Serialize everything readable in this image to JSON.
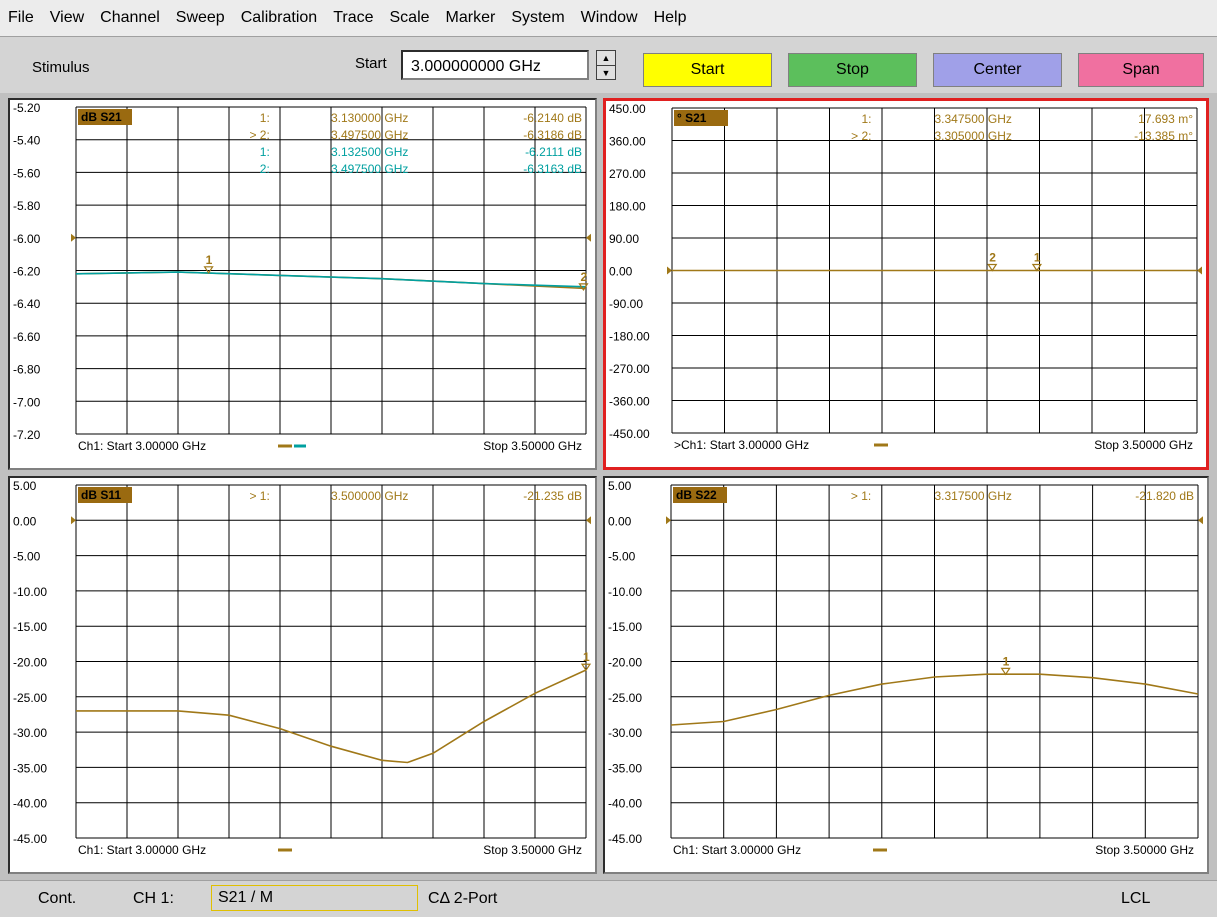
{
  "menu": [
    {
      "id": "file",
      "label": "File"
    },
    {
      "id": "view",
      "label": "View"
    },
    {
      "id": "channel",
      "label": "Channel"
    },
    {
      "id": "sweep",
      "label": "Sweep"
    },
    {
      "id": "calibration",
      "label": "Calibration"
    },
    {
      "id": "trace",
      "label": "Trace"
    },
    {
      "id": "scale",
      "label": "Scale"
    },
    {
      "id": "marker",
      "label": "Marker"
    },
    {
      "id": "system",
      "label": "System"
    },
    {
      "id": "window",
      "label": "Window"
    },
    {
      "id": "help",
      "label": "Help"
    }
  ],
  "toolbar": {
    "stimulus_label": "Stimulus",
    "start_label": "Start",
    "start_value": "3.000000000 GHz",
    "buttons": [
      {
        "id": "start",
        "label": "Start",
        "color": "#ffff00"
      },
      {
        "id": "stop",
        "label": "Stop",
        "color": "#5cbf5c"
      },
      {
        "id": "center",
        "label": "Center",
        "color": "#a0a0e8"
      },
      {
        "id": "span",
        "label": "Span",
        "color": "#f070a0"
      }
    ]
  },
  "panels": [
    {
      "id": "top-left",
      "title": "dB S21",
      "active": false,
      "y_labels": [
        "-5.20",
        "-5.40",
        "-5.60",
        "-5.80",
        "-6.00",
        "-6.20",
        "-6.40",
        "-6.60",
        "-6.80",
        "-7.00",
        "-7.20"
      ],
      "ref_level_row": 4,
      "footer_start": "Ch1: Start  3.00000 GHz",
      "footer_stop": "Stop  3.50000 GHz",
      "markers": [
        {
          "num": "1:",
          "freq": "3.130000 GHz",
          "val": "-6.2140 dB",
          "color": "#a07818"
        },
        {
          "num": "> 2:",
          "freq": "3.497500 GHz",
          "val": "-6.3186 dB",
          "color": "#a07818"
        },
        {
          "num": "1:",
          "freq": "3.132500 GHz",
          "val": "-6.2111 dB",
          "color": "#00a0a0"
        },
        {
          "num": "2:",
          "freq": "3.497500 GHz",
          "val": "-6.3163 dB",
          "color": "#00a0a0"
        }
      ]
    },
    {
      "id": "top-right",
      "title": "° S21",
      "active": true,
      "y_labels": [
        "450.00",
        "360.00",
        "270.00",
        "180.00",
        "90.00",
        "0.00",
        "-90.00",
        "-180.00",
        "-270.00",
        "-360.00",
        "-450.00"
      ],
      "ref_level_row": 5,
      "footer_start": ">Ch1: Start  3.00000 GHz",
      "footer_stop": "Stop  3.50000 GHz",
      "markers": [
        {
          "num": "1:",
          "freq": "3.347500 GHz",
          "val": "17.693 m°",
          "color": "#a07818"
        },
        {
          "num": "> 2:",
          "freq": "3.305000 GHz",
          "val": "-13.385 m°",
          "color": "#a07818"
        }
      ]
    },
    {
      "id": "bottom-left",
      "title": "dB S11",
      "active": false,
      "y_labels": [
        "5.00",
        "0.00",
        "-5.00",
        "-10.00",
        "-15.00",
        "-20.00",
        "-25.00",
        "-30.00",
        "-35.00",
        "-40.00",
        "-45.00"
      ],
      "ref_level_row": 1,
      "footer_start": "Ch1: Start  3.00000 GHz",
      "footer_stop": "Stop  3.50000 GHz",
      "markers": [
        {
          "num": "> 1:",
          "freq": "3.500000 GHz",
          "val": "-21.235 dB",
          "color": "#a07818"
        }
      ]
    },
    {
      "id": "bottom-right",
      "title": "dB S22",
      "active": false,
      "y_labels": [
        "5.00",
        "0.00",
        "-5.00",
        "-10.00",
        "-15.00",
        "-20.00",
        "-25.00",
        "-30.00",
        "-35.00",
        "-40.00",
        "-45.00"
      ],
      "ref_level_row": 1,
      "footer_start": "Ch1: Start  3.00000 GHz",
      "footer_stop": "Stop  3.50000 GHz",
      "markers": [
        {
          "num": "> 1:",
          "freq": "3.317500 GHz",
          "val": "-21.820 dB",
          "color": "#a07818"
        }
      ]
    }
  ],
  "chart_data": [
    {
      "type": "line",
      "title": "dB S21",
      "x_range_ghz": [
        3.0,
        3.5
      ],
      "ylim": [
        -7.2,
        -5.2
      ],
      "series": [
        {
          "color": "#a07818",
          "x": [
            3.0,
            3.1,
            3.2,
            3.3,
            3.4,
            3.5
          ],
          "values": [
            -6.22,
            -6.21,
            -6.23,
            -6.25,
            -6.28,
            -6.31
          ]
        },
        {
          "color": "#00a0a0",
          "x": [
            3.0,
            3.1,
            3.2,
            3.3,
            3.4,
            3.5
          ],
          "values": [
            -6.22,
            -6.21,
            -6.23,
            -6.25,
            -6.28,
            -6.3
          ]
        }
      ],
      "marker_points": [
        {
          "label": "1",
          "x": 3.13,
          "y": -6.214
        },
        {
          "label": "2",
          "x": 3.4975,
          "y": -6.3186
        }
      ]
    },
    {
      "type": "line",
      "title": "° S21",
      "x_range_ghz": [
        3.0,
        3.5
      ],
      "ylim": [
        -450,
        450
      ],
      "series": [
        {
          "color": "#a07818",
          "x": [
            3.0,
            3.5
          ],
          "values": [
            0,
            0
          ]
        }
      ],
      "marker_points": [
        {
          "label": "2",
          "x": 3.305,
          "y": 0
        },
        {
          "label": "1",
          "x": 3.3475,
          "y": 0
        }
      ]
    },
    {
      "type": "line",
      "title": "dB S11",
      "x_range_ghz": [
        3.0,
        3.5
      ],
      "ylim": [
        -45,
        5
      ],
      "series": [
        {
          "color": "#a07818",
          "x": [
            3.0,
            3.1,
            3.15,
            3.2,
            3.25,
            3.3,
            3.325,
            3.35,
            3.4,
            3.45,
            3.5
          ],
          "values": [
            -27,
            -27,
            -27.6,
            -29.5,
            -32,
            -34,
            -34.3,
            -33,
            -28.5,
            -24.5,
            -21.2
          ]
        }
      ],
      "marker_points": [
        {
          "label": "1",
          "x": 3.5,
          "y": -21.235
        }
      ]
    },
    {
      "type": "line",
      "title": "dB S22",
      "x_range_ghz": [
        3.0,
        3.5
      ],
      "ylim": [
        -45,
        5
      ],
      "series": [
        {
          "color": "#a07818",
          "x": [
            3.0,
            3.05,
            3.1,
            3.15,
            3.2,
            3.25,
            3.3,
            3.35,
            3.4,
            3.45,
            3.5
          ],
          "values": [
            -29,
            -28.5,
            -26.8,
            -24.8,
            -23.2,
            -22.2,
            -21.8,
            -21.8,
            -22.3,
            -23.2,
            -24.6
          ]
        }
      ],
      "marker_points": [
        {
          "label": "1",
          "x": 3.3175,
          "y": -21.82
        }
      ]
    }
  ],
  "status": {
    "mode": "Cont.",
    "channel": "CH 1:",
    "trace": "S21 / M",
    "cal": "CΔ 2-Port",
    "remote": "LCL"
  }
}
